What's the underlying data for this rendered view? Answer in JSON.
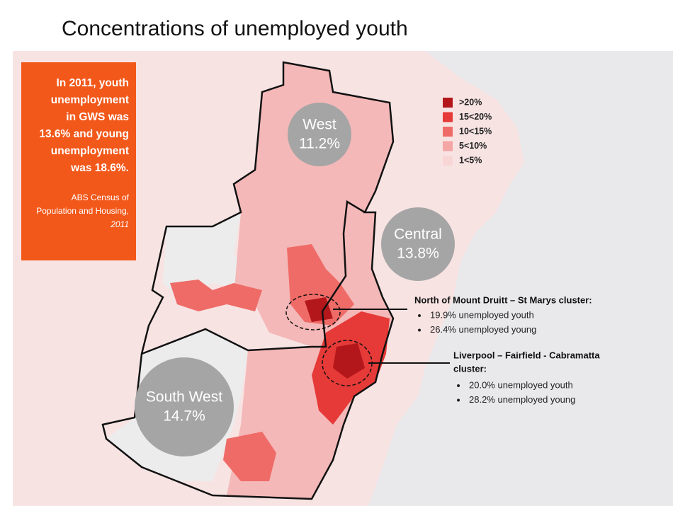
{
  "title": "Concentrations of unemployed youth",
  "callout": {
    "lines": [
      "In 2011, youth",
      "unemployment",
      "in GWS was",
      "13.6% and young",
      "unemployment",
      "was 18.6%."
    ],
    "source": [
      "ABS Census of",
      "Population and Housing,",
      "2011"
    ]
  },
  "legend": [
    {
      "label": ">20%",
      "color": "#b3171b"
    },
    {
      "label": "15<20%",
      "color": "#e53a37"
    },
    {
      "label": "10<15%",
      "color": "#ef6b67"
    },
    {
      "label": "5<10%",
      "color": "#f4a6a5"
    },
    {
      "label": "1<5%",
      "color": "#f9d6d6"
    }
  ],
  "regions": [
    {
      "name": "West",
      "rate": "11.2%"
    },
    {
      "name": "Central",
      "rate": "13.8%"
    },
    {
      "name": "South West",
      "rate": "14.7%"
    }
  ],
  "clusters": [
    {
      "title": [
        "North of Mount Druitt – St Marys cluster:"
      ],
      "bullets": [
        "19.9% unemployed youth",
        "26.4% unemployed young"
      ]
    },
    {
      "title": [
        "Liverpool – Fairfield - Cabramatta",
        "cluster:"
      ],
      "bullets": [
        "20.0% unemployed youth",
        "28.2% unemployed young"
      ]
    }
  ]
}
